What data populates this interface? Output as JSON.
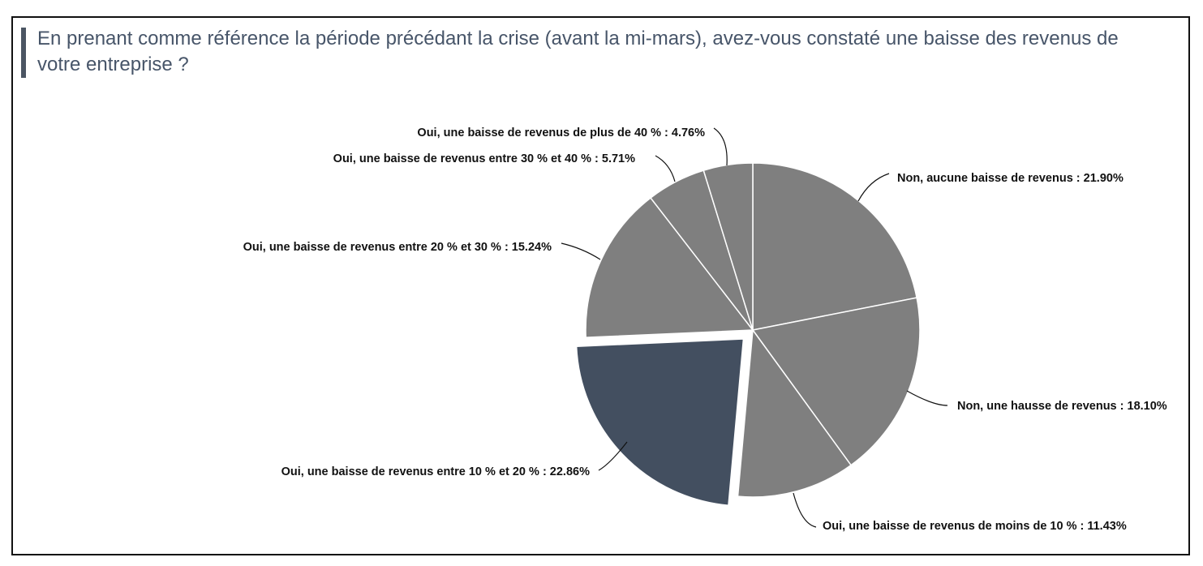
{
  "title": "En prenant comme référence la période précédant la crise (avant la mi-mars), avez-vous constaté une baisse des revenus de votre entreprise ?",
  "colors": {
    "default_slice": "#7f7f7f",
    "highlight_slice": "#434f60",
    "slice_border": "#ffffff",
    "leader_line": "#111111",
    "title_text": "#475569",
    "title_bar": "#4b5563"
  },
  "chart_data": {
    "type": "pie",
    "title": "En prenant comme référence la période précédant la crise (avant la mi-mars), avez-vous constaté une baisse des revenus de votre entreprise ?",
    "highlighted_slice": "Oui, une baisse de revenus entre 10 % et 20 %",
    "slices": [
      {
        "label": "Non, aucune baisse de revenus",
        "value": 21.9,
        "display": "Non, aucune baisse de revenus : 21.90%"
      },
      {
        "label": "Non, une hausse de revenus",
        "value": 18.1,
        "display": "Non, une hausse de revenus : 18.10%"
      },
      {
        "label": "Oui, une baisse de revenus de moins de 10 %",
        "value": 11.43,
        "display": "Oui, une baisse de revenus de moins de 10 % : 11.43%"
      },
      {
        "label": "Oui, une baisse de revenus entre 10 % et 20 %",
        "value": 22.86,
        "display": "Oui, une baisse de revenus entre 10 % et 20 % : 22.86%"
      },
      {
        "label": "Oui, une baisse de revenus entre 20 % et 30 %",
        "value": 15.24,
        "display": "Oui, une baisse de revenus entre 20 % et 30 % : 15.24%"
      },
      {
        "label": "Oui, une baisse de revenus entre 30 % et 40 %",
        "value": 5.71,
        "display": "Oui, une baisse de revenus entre 30 % et 40 % : 5.71%"
      },
      {
        "label": "Oui, une baisse de revenus de plus de 40 %",
        "value": 4.76,
        "display": "Oui, une baisse de revenus de plus de 40 % : 4.76%"
      }
    ]
  }
}
